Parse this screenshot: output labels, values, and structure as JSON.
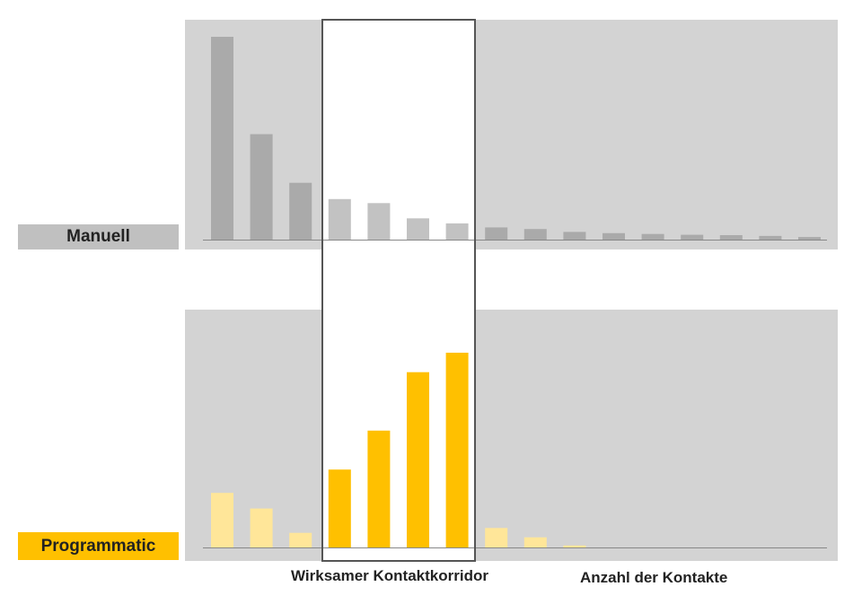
{
  "labels": {
    "manual": "Manuell",
    "programmatic": "Programmatic",
    "corridor": "Wirksamer Kontaktkorridor",
    "xaxis": "Anzahl der Kontakte"
  },
  "colors": {
    "panel_bg": "#d3d3d3",
    "manual_label_bg": "#c0c0c0",
    "programmatic_label_bg": "#ffc000",
    "manual_bar": "#aaaaaa",
    "manual_bar_corridor": "#c2c2c2",
    "prog_bar": "#ffc000",
    "prog_bar_faded": "#ffe699",
    "corridor_border": "#555555",
    "axis": "#888888"
  },
  "chart_data": [
    {
      "type": "bar",
      "name": "Manuell",
      "x_count": 16,
      "corridor_range": [
        4,
        7
      ],
      "values": [
        100,
        52,
        28,
        20,
        18,
        10.5,
        8,
        6,
        5.2,
        3.8,
        3.2,
        2.8,
        2.4,
        2.2,
        1.8,
        1.3
      ],
      "ylim": [
        0,
        100
      ],
      "xlabel": "",
      "ylabel": "",
      "grid": false
    },
    {
      "type": "bar",
      "name": "Programmatic",
      "x_count": 16,
      "corridor_range": [
        4,
        7
      ],
      "values": [
        28,
        20,
        7.5,
        40,
        60,
        90,
        100,
        10,
        5.2,
        1,
        0,
        0,
        0,
        0,
        0,
        0
      ],
      "ylim": [
        0,
        100
      ],
      "xlabel": "Anzahl der Kontakte",
      "ylabel": "",
      "grid": false
    }
  ]
}
